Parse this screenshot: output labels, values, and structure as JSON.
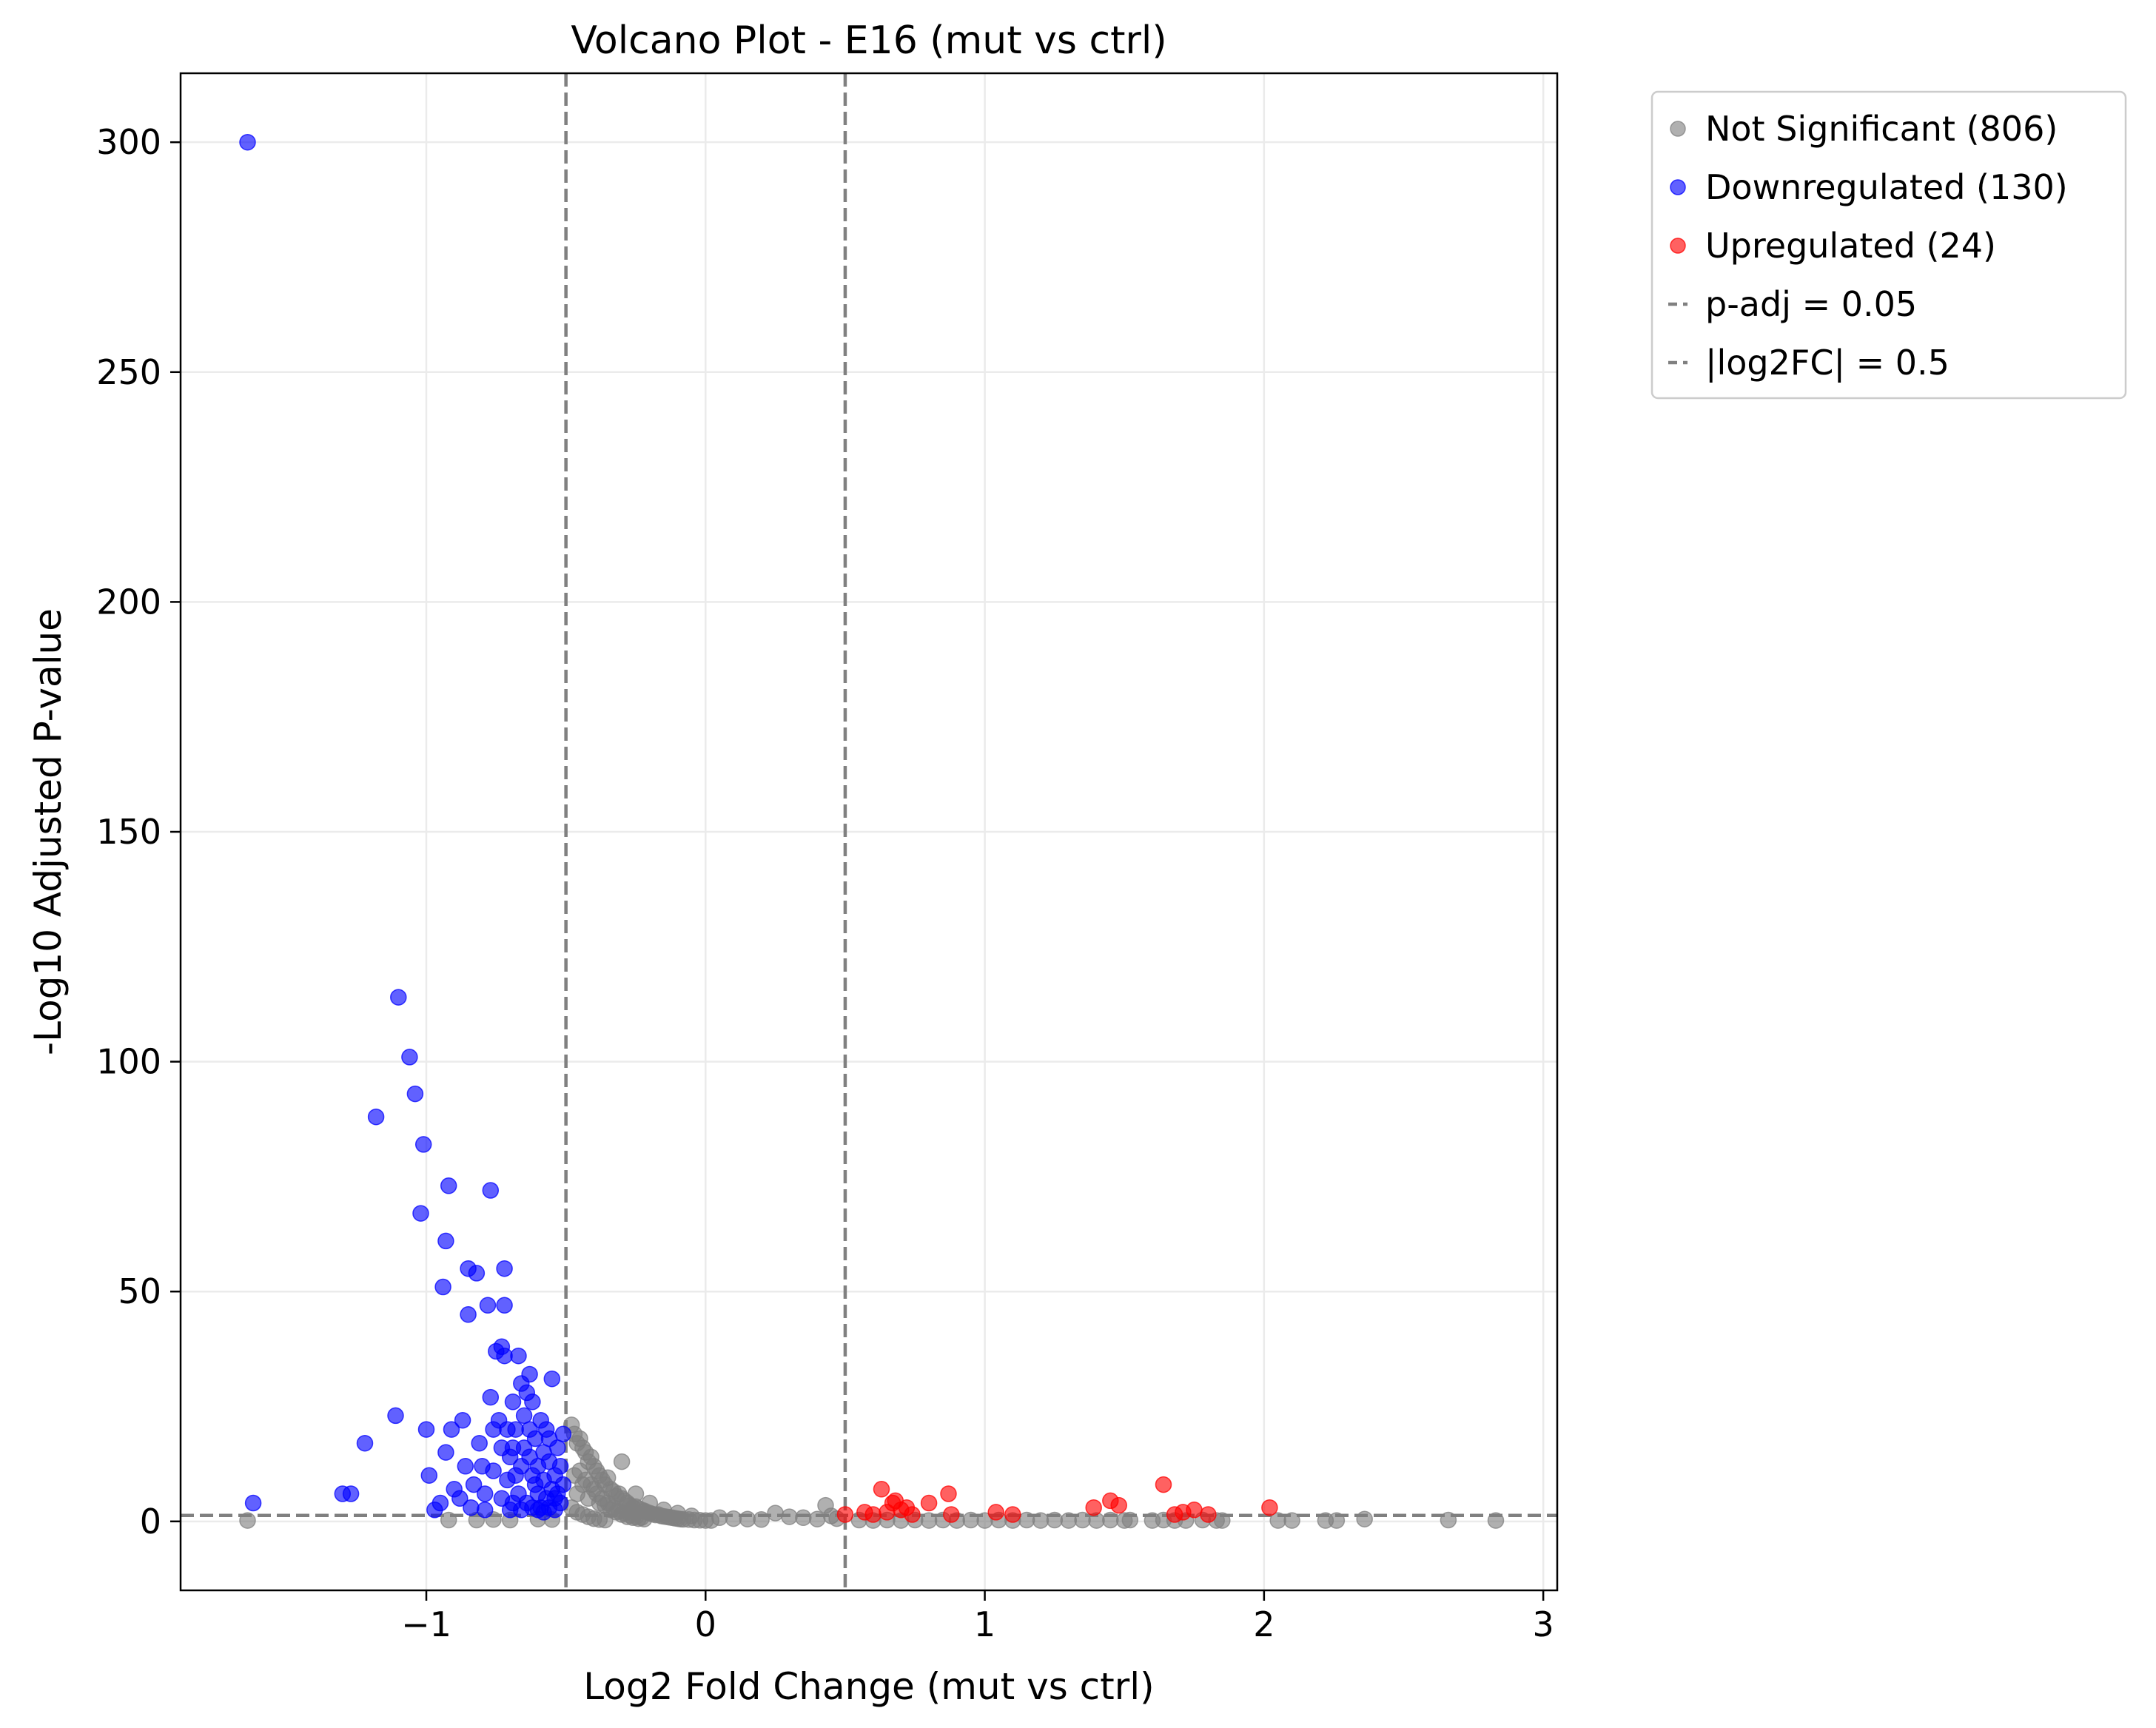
{
  "chart_data": {
    "type": "scatter",
    "title": "Volcano Plot - E16 (mut vs ctrl)",
    "xlabel": "Log2 Fold Change (mut vs ctrl)",
    "ylabel": "-Log10 Adjusted P-value",
    "xlim": [
      -1.88,
      3.05
    ],
    "ylim": [
      -15,
      315
    ],
    "x_ticks": [
      -1,
      0,
      1,
      2,
      3
    ],
    "x_tick_labels": [
      "−1",
      "0",
      "1",
      "2",
      "3"
    ],
    "y_ticks": [
      0,
      50,
      100,
      150,
      200,
      250,
      300
    ],
    "y_tick_labels": [
      "0",
      "50",
      "100",
      "150",
      "200",
      "250",
      "300"
    ],
    "grid": true,
    "legend_position": "outside-top-right",
    "thresholds": {
      "padj_line_y": 1.3,
      "log2fc_lines_x": [
        -0.5,
        0.5
      ]
    },
    "legend": [
      {
        "label": "Not Significant (806)",
        "kind": "marker",
        "color": "#808080"
      },
      {
        "label": "Downregulated (130)",
        "kind": "marker",
        "color": "#0000ff"
      },
      {
        "label": "Upregulated (24)",
        "kind": "marker",
        "color": "#ff0000"
      },
      {
        "label": "p-adj = 0.05",
        "kind": "line",
        "color": "#808080"
      },
      {
        "label": "|log2FC| = 0.5",
        "kind": "line",
        "color": "#808080"
      }
    ],
    "series": [
      {
        "name": "Not Significant (806)",
        "color": "#808080",
        "points": [
          [
            -1.64,
            0.2
          ],
          [
            -0.92,
            0.3
          ],
          [
            -0.82,
            0.3
          ],
          [
            -0.76,
            0.4
          ],
          [
            -0.7,
            0.3
          ],
          [
            -0.6,
            0.5
          ],
          [
            -0.55,
            0.4
          ],
          [
            -0.48,
            21
          ],
          [
            -0.47,
            19
          ],
          [
            -0.46,
            17
          ],
          [
            -0.45,
            18
          ],
          [
            -0.44,
            16
          ],
          [
            -0.43,
            15
          ],
          [
            -0.42,
            13
          ],
          [
            -0.41,
            14
          ],
          [
            -0.4,
            12
          ],
          [
            -0.39,
            11
          ],
          [
            -0.38,
            10
          ],
          [
            -0.37,
            9
          ],
          [
            -0.36,
            8
          ],
          [
            -0.35,
            9.5
          ],
          [
            -0.34,
            7
          ],
          [
            -0.33,
            6.5
          ],
          [
            -0.32,
            5.5
          ],
          [
            -0.31,
            6
          ],
          [
            -0.3,
            5
          ],
          [
            -0.29,
            4.5
          ],
          [
            -0.28,
            4
          ],
          [
            -0.27,
            3.5
          ],
          [
            -0.26,
            3
          ],
          [
            -0.25,
            3.2
          ],
          [
            -0.24,
            2.8
          ],
          [
            -0.23,
            2.5
          ],
          [
            -0.22,
            2.3
          ],
          [
            -0.21,
            2
          ],
          [
            -0.2,
            1.8
          ],
          [
            -0.19,
            1.6
          ],
          [
            -0.18,
            1.4
          ],
          [
            -0.17,
            1.5
          ],
          [
            -0.16,
            1.2
          ],
          [
            -0.15,
            1.1
          ],
          [
            -0.14,
            1
          ],
          [
            -0.13,
            0.9
          ],
          [
            -0.12,
            0.8
          ],
          [
            -0.11,
            0.7
          ],
          [
            -0.1,
            0.6
          ],
          [
            -0.09,
            0.5
          ],
          [
            -0.08,
            0.45
          ],
          [
            -0.06,
            0.4
          ],
          [
            -0.04,
            0.3
          ],
          [
            -0.02,
            0.25
          ],
          [
            0.0,
            0.2
          ],
          [
            0.02,
            0.2
          ],
          [
            -0.46,
            6
          ],
          [
            -0.44,
            8
          ],
          [
            -0.42,
            5
          ],
          [
            -0.4,
            7
          ],
          [
            -0.38,
            4
          ],
          [
            -0.36,
            3.5
          ],
          [
            -0.34,
            2.5
          ],
          [
            -0.32,
            2
          ],
          [
            -0.3,
            1.5
          ],
          [
            -0.28,
            1
          ],
          [
            -0.26,
            0.8
          ],
          [
            -0.24,
            0.6
          ],
          [
            -0.22,
            0.5
          ],
          [
            -0.47,
            10
          ],
          [
            -0.45,
            11
          ],
          [
            -0.43,
            9
          ],
          [
            -0.41,
            8
          ],
          [
            -0.39,
            6
          ],
          [
            -0.37,
            5
          ],
          [
            -0.35,
            4
          ],
          [
            -0.33,
            3
          ],
          [
            -0.31,
            2.2
          ],
          [
            -0.29,
            1.8
          ],
          [
            -0.27,
            1.3
          ],
          [
            -0.25,
            1
          ],
          [
            -0.23,
            0.8
          ],
          [
            -0.48,
            3
          ],
          [
            -0.46,
            2
          ],
          [
            -0.44,
            1.5
          ],
          [
            -0.42,
            1
          ],
          [
            -0.4,
            0.6
          ],
          [
            -0.38,
            0.4
          ],
          [
            -0.36,
            0.3
          ],
          [
            -0.3,
            13
          ],
          [
            -0.25,
            6
          ],
          [
            -0.2,
            4
          ],
          [
            -0.15,
            2.5
          ],
          [
            -0.1,
            1.8
          ],
          [
            -0.05,
            1.2
          ],
          [
            0.05,
            0.8
          ],
          [
            0.1,
            0.6
          ],
          [
            0.15,
            0.5
          ],
          [
            0.2,
            0.4
          ],
          [
            0.25,
            1.8
          ],
          [
            0.3,
            1
          ],
          [
            0.35,
            0.8
          ],
          [
            0.4,
            0.5
          ],
          [
            0.43,
            3.5
          ],
          [
            0.45,
            1.2
          ],
          [
            0.47,
            0.6
          ],
          [
            0.55,
            0.3
          ],
          [
            0.6,
            0.2
          ],
          [
            0.65,
            0.3
          ],
          [
            0.7,
            0.2
          ],
          [
            0.75,
            0.3
          ],
          [
            0.8,
            0.2
          ],
          [
            0.85,
            0.3
          ],
          [
            0.9,
            0.2
          ],
          [
            0.95,
            0.3
          ],
          [
            1.0,
            0.2
          ],
          [
            1.05,
            0.3
          ],
          [
            1.1,
            0.2
          ],
          [
            1.15,
            0.3
          ],
          [
            1.2,
            0.2
          ],
          [
            1.25,
            0.3
          ],
          [
            1.3,
            0.2
          ],
          [
            1.35,
            0.3
          ],
          [
            1.4,
            0.2
          ],
          [
            1.45,
            0.3
          ],
          [
            1.5,
            0.2
          ],
          [
            1.52,
            0.3
          ],
          [
            1.6,
            0.2
          ],
          [
            1.64,
            0.3
          ],
          [
            1.68,
            0.2
          ],
          [
            1.72,
            0.2
          ],
          [
            1.78,
            0.3
          ],
          [
            1.83,
            0.2
          ],
          [
            1.85,
            0.2
          ],
          [
            2.05,
            0.2
          ],
          [
            2.1,
            0.2
          ],
          [
            2.22,
            0.2
          ],
          [
            2.26,
            0.2
          ],
          [
            2.36,
            0.5
          ],
          [
            2.66,
            0.3
          ],
          [
            2.83,
            0.2
          ]
        ]
      },
      {
        "name": "Downregulated (130)",
        "color": "#0000ff",
        "points": [
          [
            -1.64,
            300
          ],
          [
            -1.62,
            4
          ],
          [
            -1.3,
            6
          ],
          [
            -1.27,
            6
          ],
          [
            -1.22,
            17
          ],
          [
            -1.18,
            88
          ],
          [
            -1.11,
            23
          ],
          [
            -1.1,
            114
          ],
          [
            -1.06,
            101
          ],
          [
            -1.04,
            93
          ],
          [
            -1.02,
            67
          ],
          [
            -1.01,
            82
          ],
          [
            -1.0,
            20
          ],
          [
            -0.99,
            10
          ],
          [
            -0.97,
            2.5
          ],
          [
            -0.95,
            4
          ],
          [
            -0.94,
            51
          ],
          [
            -0.93,
            61
          ],
          [
            -0.93,
            15
          ],
          [
            -0.92,
            73
          ],
          [
            -0.91,
            20
          ],
          [
            -0.9,
            7
          ],
          [
            -0.88,
            5
          ],
          [
            -0.87,
            22
          ],
          [
            -0.86,
            12
          ],
          [
            -0.85,
            45
          ],
          [
            -0.85,
            55
          ],
          [
            -0.84,
            3
          ],
          [
            -0.83,
            8
          ],
          [
            -0.82,
            54
          ],
          [
            -0.81,
            17
          ],
          [
            -0.8,
            12
          ],
          [
            -0.79,
            6
          ],
          [
            -0.79,
            2.5
          ],
          [
            -0.78,
            47
          ],
          [
            -0.77,
            72
          ],
          [
            -0.77,
            27
          ],
          [
            -0.76,
            20
          ],
          [
            -0.76,
            11
          ],
          [
            -0.75,
            37
          ],
          [
            -0.74,
            22
          ],
          [
            -0.73,
            38
          ],
          [
            -0.73,
            16
          ],
          [
            -0.73,
            5
          ],
          [
            -0.72,
            36
          ],
          [
            -0.72,
            55
          ],
          [
            -0.72,
            47
          ],
          [
            -0.71,
            20
          ],
          [
            -0.71,
            9
          ],
          [
            -0.7,
            14
          ],
          [
            -0.7,
            2.5
          ],
          [
            -0.69,
            26
          ],
          [
            -0.69,
            16
          ],
          [
            -0.68,
            10
          ],
          [
            -0.68,
            20
          ],
          [
            -0.67,
            6
          ],
          [
            -0.67,
            36
          ],
          [
            -0.66,
            30
          ],
          [
            -0.66,
            12
          ],
          [
            -0.65,
            23
          ],
          [
            -0.65,
            16
          ],
          [
            -0.64,
            28
          ],
          [
            -0.64,
            4
          ],
          [
            -0.63,
            32
          ],
          [
            -0.63,
            20
          ],
          [
            -0.63,
            14
          ],
          [
            -0.62,
            10
          ],
          [
            -0.62,
            26
          ],
          [
            -0.61,
            8
          ],
          [
            -0.61,
            18
          ],
          [
            -0.6,
            12
          ],
          [
            -0.6,
            6
          ],
          [
            -0.59,
            22
          ],
          [
            -0.59,
            3
          ],
          [
            -0.58,
            15
          ],
          [
            -0.58,
            9
          ],
          [
            -0.57,
            20
          ],
          [
            -0.57,
            5
          ],
          [
            -0.56,
            13
          ],
          [
            -0.56,
            18
          ],
          [
            -0.55,
            7
          ],
          [
            -0.55,
            31
          ],
          [
            -0.54,
            10
          ],
          [
            -0.54,
            2.5
          ],
          [
            -0.53,
            16
          ],
          [
            -0.53,
            6
          ],
          [
            -0.52,
            12
          ],
          [
            -0.52,
            4
          ],
          [
            -0.51,
            8
          ],
          [
            -0.51,
            19
          ],
          [
            -0.69,
            4
          ],
          [
            -0.66,
            2.5
          ],
          [
            -0.62,
            3
          ],
          [
            -0.6,
            2.5
          ],
          [
            -0.58,
            2
          ],
          [
            -0.56,
            3
          ],
          [
            -0.54,
            5
          ]
        ]
      },
      {
        "name": "Upregulated (24)",
        "color": "#ff0000",
        "points": [
          [
            0.5,
            1.5
          ],
          [
            0.57,
            2
          ],
          [
            0.6,
            1.5
          ],
          [
            0.63,
            7
          ],
          [
            0.65,
            2
          ],
          [
            0.67,
            4
          ],
          [
            0.68,
            4.5
          ],
          [
            0.7,
            2.5
          ],
          [
            0.72,
            3
          ],
          [
            0.74,
            1.5
          ],
          [
            0.8,
            4
          ],
          [
            0.87,
            6
          ],
          [
            0.88,
            1.5
          ],
          [
            1.04,
            2
          ],
          [
            1.1,
            1.5
          ],
          [
            1.39,
            3
          ],
          [
            1.45,
            4.5
          ],
          [
            1.48,
            3.5
          ],
          [
            1.64,
            8
          ],
          [
            1.68,
            1.5
          ],
          [
            1.71,
            2
          ],
          [
            1.75,
            2.5
          ],
          [
            1.8,
            1.5
          ],
          [
            2.02,
            3
          ]
        ]
      }
    ]
  }
}
